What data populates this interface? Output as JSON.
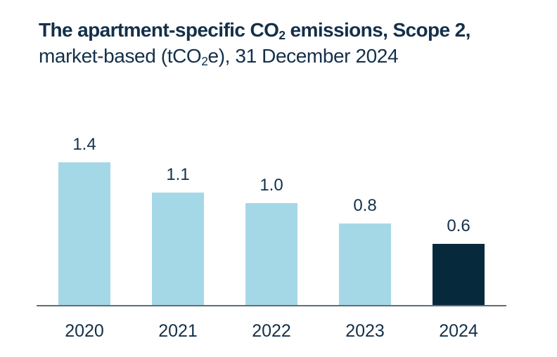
{
  "header": {
    "line1": {
      "pre": "The apartment-specific CO",
      "sub": "2",
      "post": " emissions, Scope 2,"
    },
    "line2": {
      "pre": "market-based (tCO",
      "sub": "2",
      "post": "e), 31 December 2024"
    }
  },
  "chart_data": {
    "type": "bar",
    "title": "The apartment-specific CO2 emissions, Scope 2, market-based (tCO2e), 31 December 2024",
    "categories": [
      "2020",
      "2021",
      "2022",
      "2023",
      "2024"
    ],
    "values": [
      1.4,
      1.1,
      1.0,
      0.8,
      0.6
    ],
    "value_labels": [
      "1.4",
      "1.1",
      "1.0",
      "0.8",
      "0.6"
    ],
    "unit": "tCO2e",
    "xlabel": "",
    "ylabel": "",
    "ylim": [
      0,
      1.4
    ],
    "grid": false,
    "legend": "none",
    "bar_colors": [
      "#a5d8e6",
      "#a5d8e6",
      "#a5d8e6",
      "#a5d8e6",
      "#07293c"
    ]
  },
  "colors": {
    "bar_light": "#a5d8e6",
    "bar_dark": "#07293c",
    "text": "#14304a",
    "axis": "#5f6d79",
    "background": "#ffffff"
  }
}
